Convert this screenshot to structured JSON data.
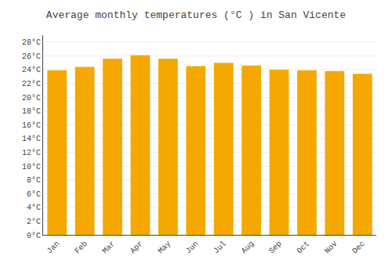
{
  "chart_data": {
    "type": "bar",
    "title": "Average monthly temperatures (°C ) in San Vicente",
    "categories": [
      "Jan",
      "Feb",
      "Mar",
      "Apr",
      "May",
      "Jun",
      "Jul",
      "Aug",
      "Sep",
      "Oct",
      "Nov",
      "Dec"
    ],
    "values": [
      23.9,
      24.4,
      25.6,
      26.1,
      25.6,
      24.5,
      25.0,
      24.6,
      24.0,
      23.9,
      23.8,
      23.4
    ],
    "color": "#F5A800",
    "ylim": [
      0,
      29
    ],
    "yticks": [
      {
        "value": 0,
        "label": "0°C"
      },
      {
        "value": 2,
        "label": "2°C"
      },
      {
        "value": 4,
        "label": "4°C"
      },
      {
        "value": 6,
        "label": "6°C"
      },
      {
        "value": 8,
        "label": "8°C"
      },
      {
        "value": 10,
        "label": "10°C"
      },
      {
        "value": 12,
        "label": "12°C"
      },
      {
        "value": 14,
        "label": "14°C"
      },
      {
        "value": 16,
        "label": "16°C"
      },
      {
        "value": 18,
        "label": "18°C"
      },
      {
        "value": 20,
        "label": "20°C"
      },
      {
        "value": 22,
        "label": "22°C"
      },
      {
        "value": 24,
        "label": "24°C"
      },
      {
        "value": 26,
        "label": "26°C"
      },
      {
        "value": 28,
        "label": "28°C"
      }
    ],
    "grid": true
  }
}
